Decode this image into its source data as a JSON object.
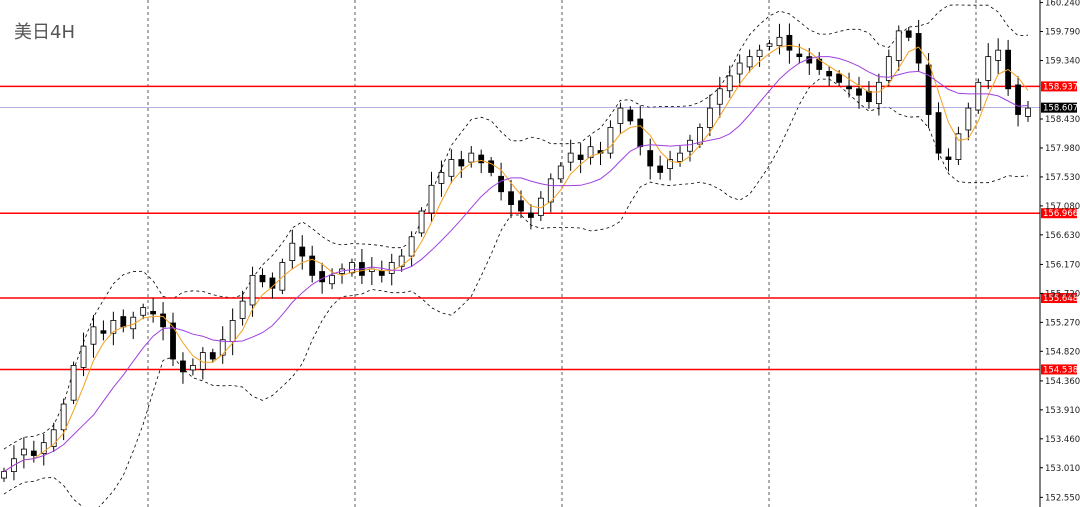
{
  "chart_data": {
    "type": "candlestick",
    "title": "美日4H",
    "yticks": [
      "160.240",
      "159.790",
      "159.340",
      "158.430",
      "157.980",
      "157.530",
      "157.080",
      "156.630",
      "156.170",
      "155.720",
      "155.270",
      "154.820",
      "154.360",
      "153.910",
      "153.460",
      "153.010",
      "152.550"
    ],
    "ylim": [
      152.4,
      160.28
    ],
    "levels": [
      {
        "label": "158.937",
        "value": 158.937
      },
      {
        "label": "156.966",
        "value": 156.966
      },
      {
        "label": "155.648",
        "value": 155.648
      },
      {
        "label": "154.538",
        "value": 154.538
      }
    ],
    "current_price": {
      "label": "158.607",
      "value": 158.607
    },
    "colors": {
      "level": "#ff0000",
      "current": "#9a9ad8",
      "fast_ma": "#f5a020",
      "slow_ma": "#a040e0",
      "bands": "#000000",
      "candle": "#000000"
    },
    "indicators": [
      "fast-ma",
      "slow-ma",
      "bollinger-bands"
    ],
    "close": [
      152.95,
      153.15,
      153.3,
      153.2,
      153.4,
      153.6,
      154.0,
      154.6,
      154.9,
      155.2,
      155.1,
      155.3,
      155.2,
      155.35,
      155.5,
      155.4,
      155.2,
      154.7,
      154.5,
      154.6,
      154.8,
      154.7,
      155.0,
      155.3,
      155.6,
      156.0,
      155.9,
      155.8,
      156.2,
      156.5,
      156.3,
      156.0,
      155.9,
      156.0,
      156.1,
      156.2,
      156.0,
      156.1,
      156.0,
      156.2,
      156.3,
      156.6,
      157.0,
      157.4,
      157.6,
      157.8,
      157.7,
      157.9,
      157.75,
      157.6,
      157.3,
      157.1,
      157.0,
      156.9,
      157.2,
      157.5,
      157.7,
      157.9,
      157.8,
      158.0,
      157.9,
      158.3,
      158.6,
      158.4,
      158.0,
      157.7,
      157.6,
      157.8,
      157.9,
      158.1,
      158.3,
      158.6,
      158.9,
      159.1,
      159.3,
      159.4,
      159.5,
      159.6,
      159.7,
      159.5,
      159.4,
      159.3,
      159.2,
      159.1,
      159.0,
      158.9,
      158.8,
      158.7,
      159.0,
      159.4,
      159.8,
      159.7,
      159.3,
      158.5,
      157.9,
      157.8,
      158.2,
      158.6,
      159.0,
      159.4,
      159.5,
      158.9,
      158.5,
      158.6
    ]
  }
}
